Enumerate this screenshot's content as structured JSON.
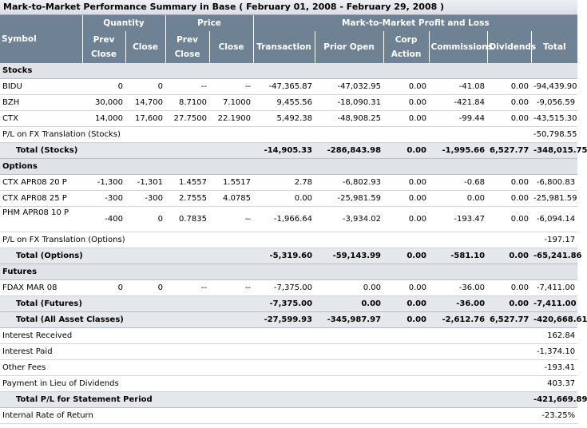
{
  "title": "Mark-to-Market Performance Summary in Base ( February 01, 2008 - February 29, 2008 )",
  "headers": {
    "symbol": "Symbol",
    "quantity": "Quantity",
    "price": "Price",
    "mtm": "Mark-to-Market Profit and Loss",
    "prev_close": "Prev Close",
    "close": "Close",
    "price_prev_close": "Prev Close",
    "price_close": "Close",
    "transaction": "Transaction",
    "prior_open": "Prior Open",
    "corp_action": "Corp Action",
    "commissions": "Commissions",
    "dividends": "Dividends",
    "total": "Total"
  },
  "stocks": {
    "label": "Stocks",
    "rows": [
      {
        "symbol": "BIDU",
        "prev_close": "0",
        "close": "0",
        "price_prev": "--",
        "price_close": "--",
        "transaction": "-47,365.87",
        "prior_open": "-47,032.95",
        "corp_action": "0.00",
        "commissions": "-41.08",
        "dividends": "0.00",
        "total": "-94,439.90"
      },
      {
        "symbol": "BZH",
        "prev_close": "30,000",
        "close": "14,700",
        "price_prev": "8.7100",
        "price_close": "7.1000",
        "transaction": "9,455.56",
        "prior_open": "-18,090.31",
        "corp_action": "0.00",
        "commissions": "-421.84",
        "dividends": "0.00",
        "total": "-9,056.59"
      },
      {
        "symbol": "CTX",
        "prev_close": "14,000",
        "close": "17,600",
        "price_prev": "27.7500",
        "price_close": "22.1900",
        "transaction": "5,492.38",
        "prior_open": "-48,908.25",
        "corp_action": "0.00",
        "commissions": "-99.44",
        "dividends": "0.00",
        "total": "-43,515.30"
      }
    ],
    "fx_label": "P/L on FX Translation (Stocks)",
    "fx_total": "-50,798.55",
    "total_row": {
      "label": "Total (Stocks)",
      "transaction": "-14,905.33",
      "prior_open": "-286,843.98",
      "corp_action": "0.00",
      "commissions": "-1,995.66",
      "dividends": "6,527.77",
      "total": "-348,015.75"
    }
  },
  "options": {
    "label": "Options",
    "rows": [
      {
        "symbol": "CTX APR08 20 P",
        "prev_close": "-1,300",
        "close": "-1,301",
        "price_prev": "1.4557",
        "price_close": "1.5517",
        "transaction": "2.78",
        "prior_open": "-6,802.93",
        "corp_action": "0.00",
        "commissions": "-0.68",
        "dividends": "0.00",
        "total": "-6,800.83"
      },
      {
        "symbol": "CTX APR08 25 P",
        "prev_close": "-300",
        "close": "-300",
        "price_prev": "2.7555",
        "price_close": "4.0785",
        "transaction": "0.00",
        "prior_open": "-25,981.59",
        "corp_action": "0.00",
        "commissions": "0.00",
        "dividends": "0.00",
        "total": "-25,981.59"
      },
      {
        "symbol": "PHM APR08 10 P",
        "prev_close": "-400",
        "close": "0",
        "price_prev": "0.7835",
        "price_close": "--",
        "transaction": "-1,966.64",
        "prior_open": "-3,934.02",
        "corp_action": "0.00",
        "commissions": "-193.47",
        "dividends": "0.00",
        "total": "-6,094.14"
      }
    ],
    "fx_label": "P/L on FX Translation (Options)",
    "fx_total": "-197.17",
    "total_row": {
      "label": "Total (Options)",
      "transaction": "-5,319.60",
      "prior_open": "-59,143.99",
      "corp_action": "0.00",
      "commissions": "-581.10",
      "dividends": "0.00",
      "total": "-65,241.86"
    }
  },
  "futures": {
    "label": "Futures",
    "rows": [
      {
        "symbol": "FDAX MAR 08",
        "prev_close": "0",
        "close": "0",
        "price_prev": "--",
        "price_close": "--",
        "transaction": "-7,375.00",
        "prior_open": "0.00",
        "corp_action": "0.00",
        "commissions": "-36.00",
        "dividends": "0.00",
        "total": "-7,411.00"
      }
    ],
    "total_row": {
      "label": "Total (Futures)",
      "transaction": "-7,375.00",
      "prior_open": "0.00",
      "corp_action": "0.00",
      "commissions": "-36.00",
      "dividends": "0.00",
      "total": "-7,411.00"
    }
  },
  "all_total": {
    "label": "Total (All Asset Classes)",
    "transaction": "-27,599.93",
    "prior_open": "-345,987.97",
    "corp_action": "0.00",
    "commissions": "-2,612.76",
    "dividends": "6,527.77",
    "total": "-420,668.61"
  },
  "other": [
    {
      "label": "Interest Received",
      "total": "162.84"
    },
    {
      "label": "Interest Paid",
      "total": "-1,374.10"
    },
    {
      "label": "Other Fees",
      "total": "-193.41"
    },
    {
      "label": "Payment in Lieu of Dividends",
      "total": "403.37"
    }
  ],
  "statement_total": {
    "label": "Total P/L for Statement Period",
    "total": "-421,669.89"
  },
  "irr": {
    "label": "Internal Rate of Return",
    "total": "-23.25%"
  }
}
